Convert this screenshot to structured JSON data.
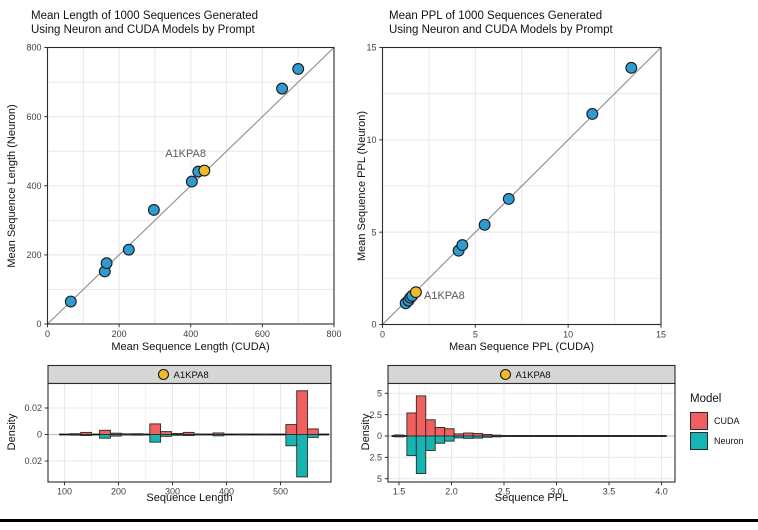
{
  "figure": {
    "annotation_label": "A1KPA8"
  },
  "colors": {
    "point_blue": "#2E9BD3",
    "highlight_orange": "#EFB929",
    "cuda_red": "#F1605F",
    "neuron_teal": "#17B5B1",
    "identity_line": "#8C8C8C",
    "panel_border": "#2B2B2B",
    "strip_bg": "#D6D6D6",
    "gridline": "#E8E8E8",
    "gridline_minor": "#F2F2F2",
    "zero_line": "#C4C4C4",
    "annotation_text": "#595959",
    "tick_text": "#404040"
  },
  "legend": {
    "title": "Model",
    "items": [
      {
        "label": "CUDA",
        "color": "#F1605F"
      },
      {
        "label": "Neuron",
        "color": "#17B5B1"
      }
    ]
  },
  "chart_data": [
    {
      "id": "length_scatter",
      "type": "scatter",
      "title_lines": [
        "Mean Length of 1000 Sequences Generated",
        "Using Neuron and CUDA Models by Prompt"
      ],
      "xlabel": "Mean Sequence Length (CUDA)",
      "ylabel": "Mean Sequence Length (Neuron)",
      "xlim": [
        0,
        800
      ],
      "ylim": [
        0,
        800
      ],
      "xticks": [
        0,
        200,
        400,
        600,
        800
      ],
      "xtick_labels": [
        "0",
        "200",
        "400",
        "600",
        "800"
      ],
      "yticks": [
        0,
        200,
        400,
        600,
        800
      ],
      "ytick_labels": [
        "0",
        "200",
        "400",
        "600",
        "800"
      ],
      "minor_step": 100,
      "identity_line": true,
      "grid": true,
      "legend_position": "none",
      "points": [
        [
          65,
          65
        ],
        [
          160,
          152
        ],
        [
          165,
          176
        ],
        [
          227,
          215
        ],
        [
          297,
          330
        ],
        [
          403,
          412
        ],
        [
          421,
          441
        ],
        [
          655,
          681
        ],
        [
          700,
          738
        ]
      ],
      "highlight": {
        "x": 438,
        "y": 444,
        "label": "A1KPA8"
      }
    },
    {
      "id": "ppl_scatter",
      "type": "scatter",
      "title_lines": [
        "Mean PPL of 1000 Sequences Generated",
        "Using Neuron and CUDA Models by Prompt"
      ],
      "xlabel": "Mean Sequence PPL (CUDA)",
      "ylabel": "Mean Sequence PPL (Neuron)",
      "xlim": [
        0,
        15
      ],
      "ylim": [
        0,
        15
      ],
      "xticks": [
        0,
        5,
        10,
        15
      ],
      "xtick_labels": [
        "0",
        "5",
        "10",
        "15"
      ],
      "yticks": [
        0,
        5,
        10,
        15
      ],
      "ytick_labels": [
        "0",
        "5",
        "10",
        "15"
      ],
      "minor_step": 2.5,
      "identity_line": true,
      "grid": true,
      "legend_position": "none",
      "points": [
        [
          1.25,
          1.15
        ],
        [
          1.4,
          1.3
        ],
        [
          1.5,
          1.45
        ],
        [
          1.6,
          1.55
        ],
        [
          4.1,
          4.0
        ],
        [
          4.3,
          4.3
        ],
        [
          5.5,
          5.4
        ],
        [
          6.8,
          6.8
        ],
        [
          11.3,
          11.4
        ],
        [
          13.4,
          13.9
        ]
      ],
      "highlight": {
        "x": 1.8,
        "y": 1.75,
        "label": "A1KPA8"
      }
    },
    {
      "id": "length_density",
      "type": "mirrored_histogram",
      "strip_label": "A1KPA8",
      "xlabel": "Sequence Length",
      "ylabel": "Density",
      "xticks": [
        100,
        200,
        300,
        400,
        500
      ],
      "xtick_labels": [
        "100",
        "200",
        "300",
        "400",
        "500"
      ],
      "ytick_values": [
        0.02,
        0,
        -0.02
      ],
      "ytick_labels": [
        "0.02",
        "0",
        "0.02"
      ],
      "bin_width": 20,
      "centers": [
        120,
        140,
        175,
        195,
        215,
        235,
        268,
        288,
        308,
        330,
        352,
        385,
        430,
        470,
        520,
        540,
        560
      ],
      "series": [
        {
          "name": "CUDA",
          "values": [
            0.0006,
            0.0016,
            0.0032,
            0.001,
            0.0005,
            0.0006,
            0.008,
            0.0022,
            0.0008,
            0.0016,
            0.0004,
            0.0012,
            0.0004,
            0.0002,
            0.0075,
            0.033,
            0.0042
          ]
        },
        {
          "name": "Neuron",
          "values": [
            0.0005,
            0.0008,
            0.0028,
            0.0012,
            0.0004,
            0.0005,
            0.0058,
            0.0014,
            0.0006,
            0.0008,
            0.0003,
            0.001,
            0.0003,
            0.0002,
            0.0085,
            0.032,
            0.0022
          ]
        }
      ],
      "baseline_range": [
        90,
        590
      ]
    },
    {
      "id": "ppl_density",
      "type": "mirrored_histogram",
      "strip_label": "A1KPA8",
      "xlabel": "Sequence PPL",
      "ylabel": "Density",
      "xticks": [
        1.5,
        2.0,
        2.5,
        3.0,
        3.5,
        4.0
      ],
      "xtick_labels": [
        "1.5",
        "2.0",
        "2.5",
        "3.0",
        "3.5",
        "4.0"
      ],
      "ytick_values": [
        5,
        2.5,
        0,
        -2.5,
        -5
      ],
      "ytick_labels": [
        "5",
        "2.5",
        "0",
        "2.5",
        "5"
      ],
      "bin_width": 0.09,
      "centers": [
        1.5,
        1.62,
        1.71,
        1.8,
        1.89,
        1.98,
        2.07,
        2.16,
        2.25,
        2.34,
        2.43
      ],
      "series": [
        {
          "name": "CUDA",
          "values": [
            0.12,
            2.7,
            4.7,
            1.9,
            1.0,
            0.85,
            0.25,
            0.35,
            0.3,
            0.18,
            0.1
          ]
        },
        {
          "name": "Neuron",
          "values": [
            0.1,
            2.3,
            4.4,
            1.7,
            0.85,
            0.6,
            0.22,
            0.28,
            0.25,
            0.15,
            0.1
          ]
        }
      ],
      "baseline_range": [
        1.43,
        4.05
      ]
    }
  ]
}
